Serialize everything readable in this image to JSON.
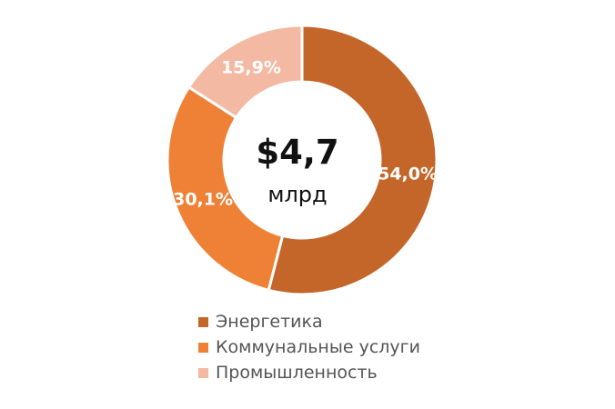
{
  "chart_data": {
    "type": "pie",
    "donut": true,
    "center_value": "$4,7",
    "center_unit": "млрд",
    "categories": [
      "Энергетика",
      "Коммунальные услуги",
      "Промышленность"
    ],
    "values": [
      54.0,
      30.1,
      15.9
    ],
    "value_labels": [
      "54,0%",
      "30,1%",
      "15,9%"
    ],
    "colors": [
      "#c4662a",
      "#ee8136",
      "#f3b9a2"
    ],
    "legend_position": "bottom"
  }
}
